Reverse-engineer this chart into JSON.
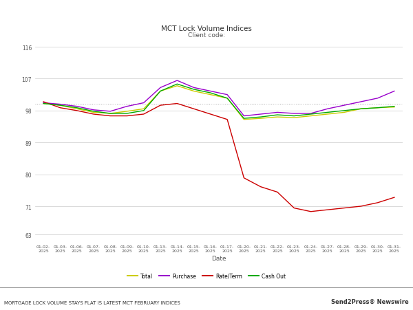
{
  "title": "MCT Lock Volume Indices",
  "subtitle": "Client code:",
  "xlabel": "Date",
  "x_labels": [
    "01-02-\n2025",
    "01-03-\n2025",
    "01-06-\n2025",
    "01-07-\n2025",
    "01-08-\n2025",
    "01-09-\n2025",
    "01-10-\n2025",
    "01-13-\n2025",
    "01-14-\n2025",
    "01-15-\n2025",
    "01-16-\n2025",
    "01-17-\n2025",
    "01-20-\n2025",
    "01-21-\n2025",
    "01-22-\n2025",
    "01-23-\n2025",
    "01-24-\n2025",
    "01-27-\n2025",
    "01-28-\n2025",
    "01-29-\n2025",
    "01-30-\n2025",
    "01-31-\n2025"
  ],
  "yticks": [
    63,
    71,
    80,
    89,
    98,
    107,
    116
  ],
  "ylim": [
    61,
    118
  ],
  "reference_line": 100,
  "series": {
    "Total": {
      "color": "#cccc00",
      "values": [
        100,
        99.5,
        98.5,
        97.5,
        97.2,
        97.8,
        98.5,
        103.5,
        105.0,
        103.5,
        102.5,
        101.5,
        95.5,
        95.8,
        96.2,
        96.0,
        96.5,
        97.0,
        97.5,
        98.5,
        98.8,
        99.0
      ]
    },
    "Purchase": {
      "color": "#9900cc",
      "values": [
        100.2,
        99.8,
        99.2,
        98.2,
        97.8,
        99.2,
        100.2,
        104.5,
        106.5,
        104.5,
        103.5,
        102.5,
        96.5,
        97.0,
        97.5,
        97.2,
        97.2,
        98.5,
        99.5,
        100.5,
        101.5,
        103.5
      ]
    },
    "Rate/Term": {
      "color": "#cc0000",
      "values": [
        100.5,
        98.8,
        98.0,
        97.0,
        96.5,
        96.5,
        97.0,
        99.5,
        100.0,
        98.5,
        97.0,
        95.5,
        79.0,
        76.5,
        75.0,
        70.5,
        69.5,
        70.0,
        70.5,
        71.0,
        72.0,
        73.5
      ]
    },
    "Cash Out": {
      "color": "#00aa00",
      "values": [
        100.0,
        99.5,
        98.8,
        97.8,
        97.2,
        97.2,
        98.0,
        103.5,
        105.5,
        104.0,
        103.0,
        101.5,
        95.8,
        96.2,
        96.8,
        96.5,
        97.0,
        97.5,
        98.0,
        98.5,
        98.8,
        99.2
      ]
    }
  },
  "legend_labels": [
    "Total",
    "Purchase",
    "Rate/Term",
    "Cash Out"
  ],
  "background_color": "#ffffff",
  "grid_color": "#cccccc",
  "footer_left": "MORTGAGE LOCK VOLUME STAYS FLAT IS LATEST MCT FEBRUARY INDICES",
  "footer_right": "Send2Press® Newswire"
}
